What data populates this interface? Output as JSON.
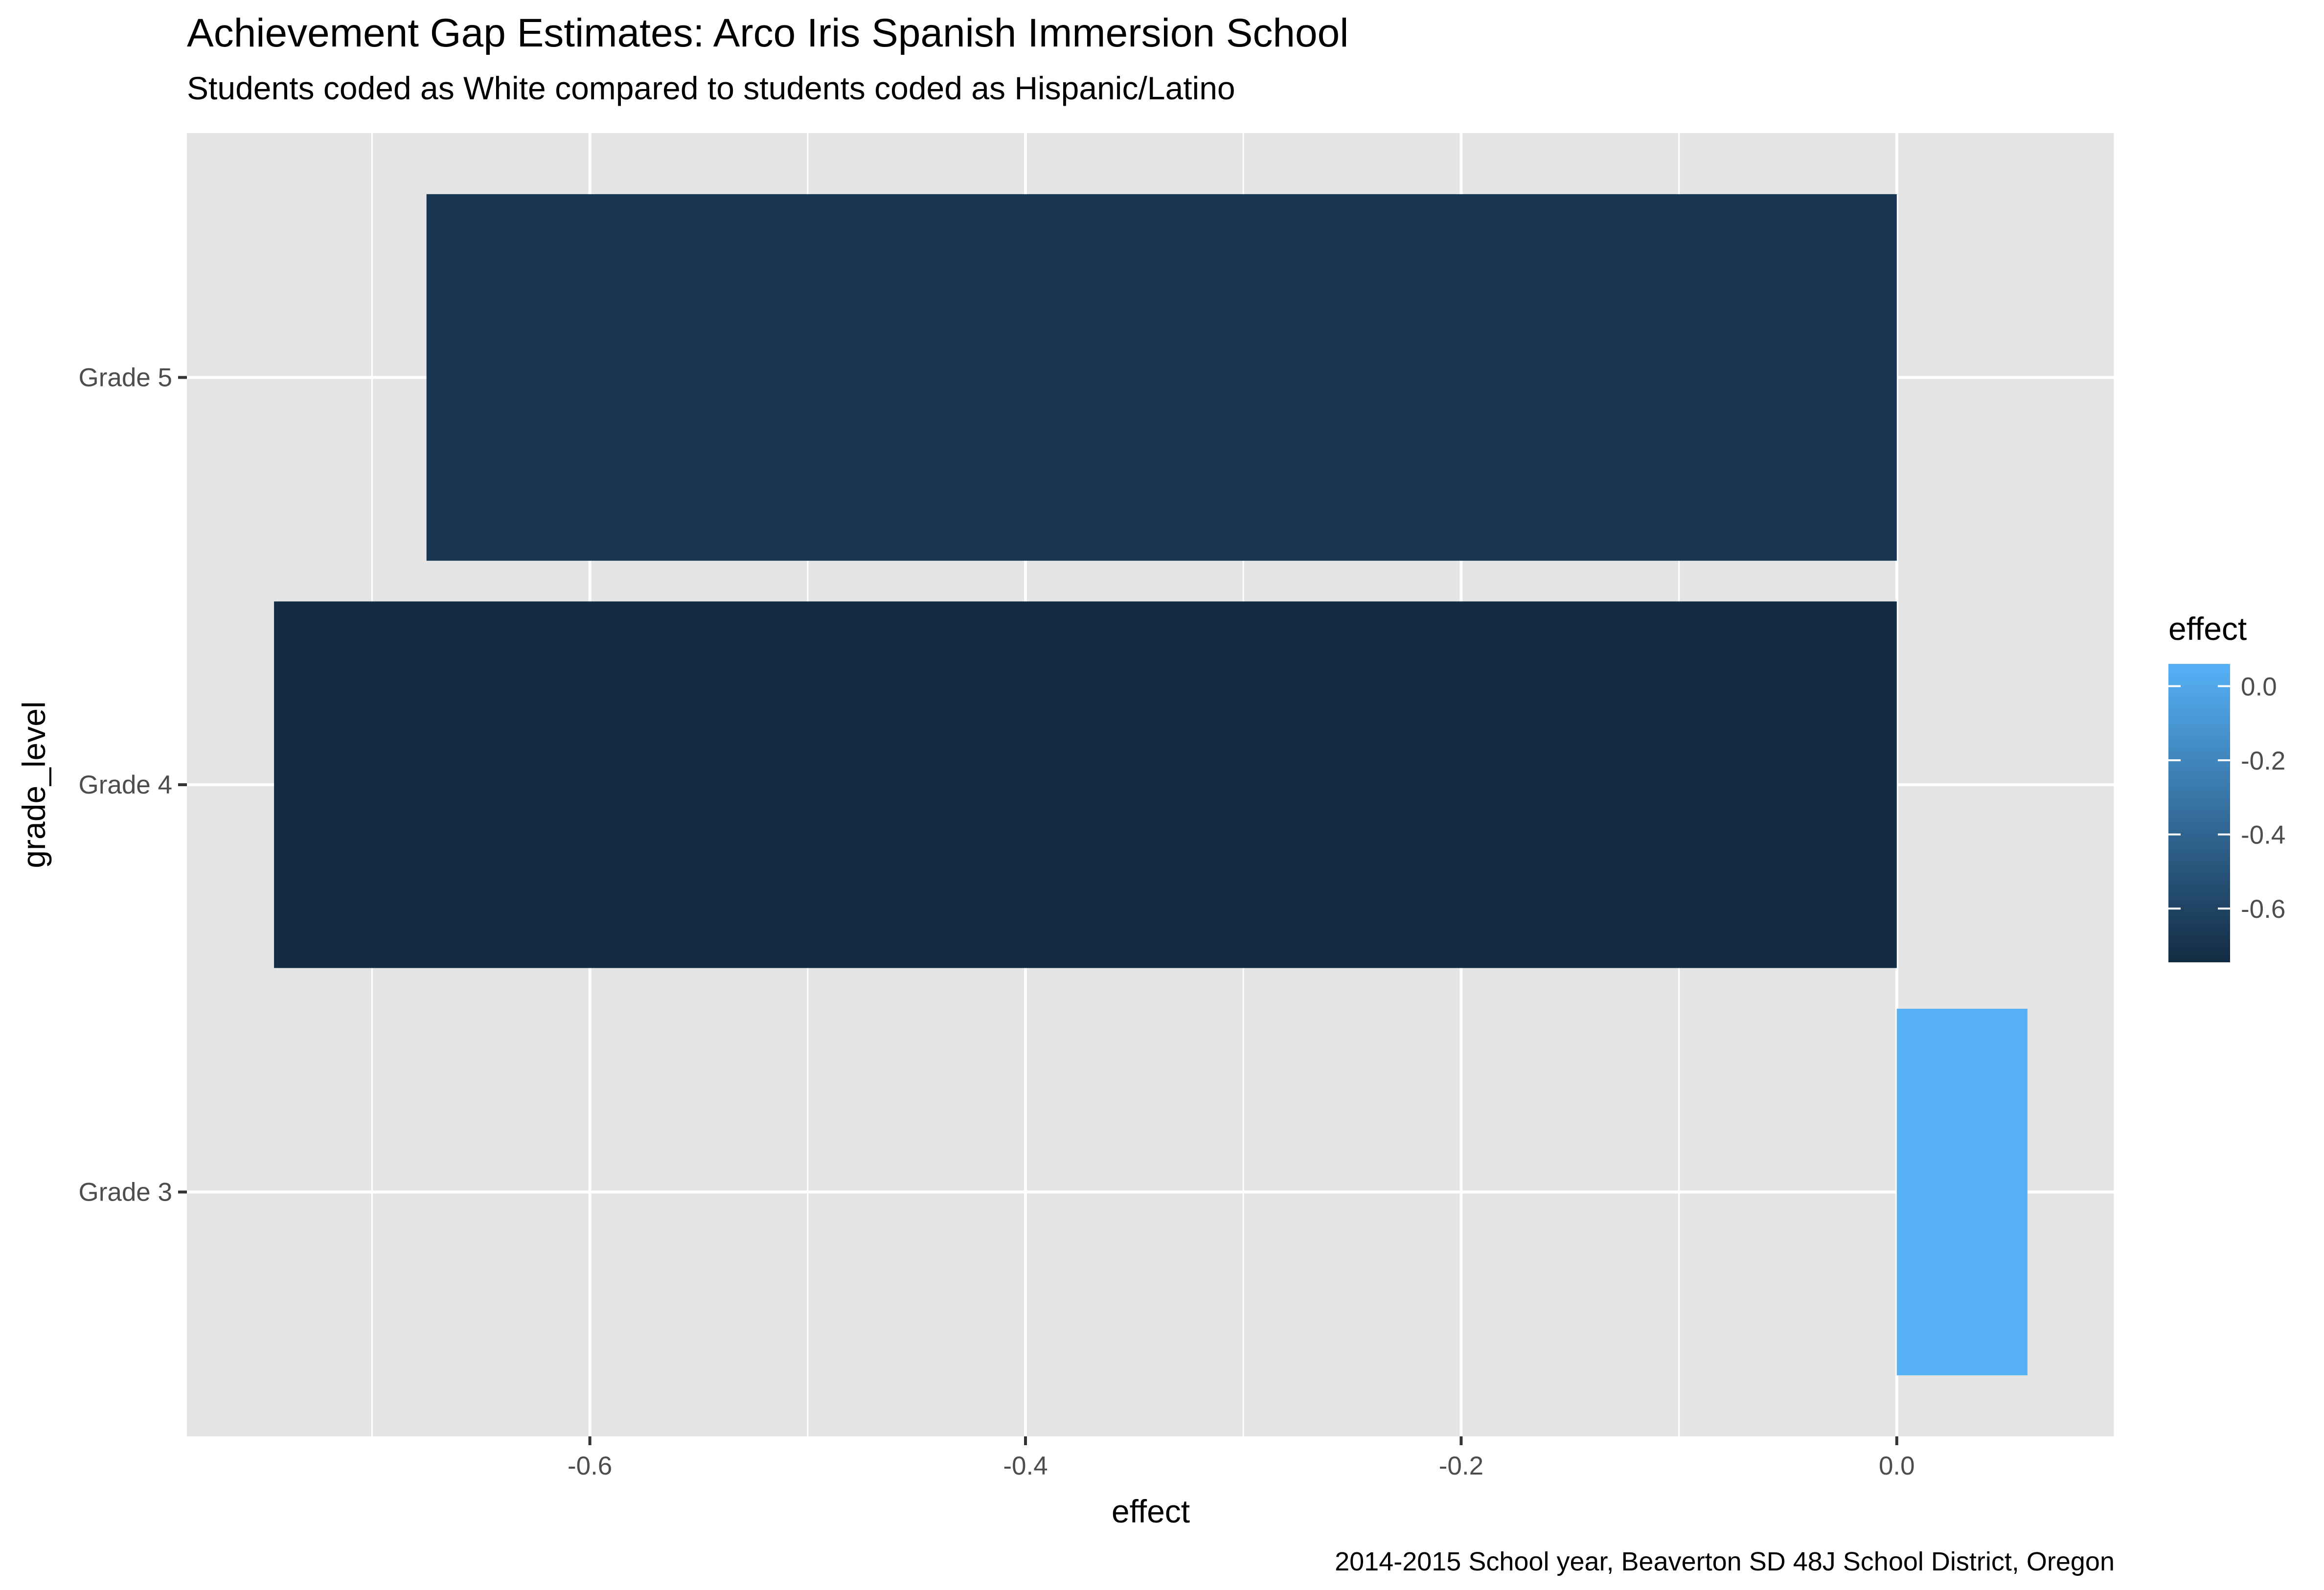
{
  "chart_data": {
    "type": "bar",
    "orientation": "horizontal",
    "title": "Achievement Gap Estimates: Arco Iris Spanish Immersion School",
    "subtitle": "Students coded as White compared to students coded as Hispanic/Latino",
    "caption": "2014-2015 School year, Beaverton SD 48J School District, Oregon",
    "xlabel": "effect",
    "ylabel": "grade_level",
    "categories": [
      "Grade 3",
      "Grade 4",
      "Grade 5"
    ],
    "values": [
      0.06,
      -0.745,
      -0.675
    ],
    "xlim": [
      -0.785,
      0.1
    ],
    "x_ticks": [
      -0.6,
      -0.4,
      -0.2,
      0.0
    ],
    "x_tick_labels": [
      "-0.6",
      "-0.4",
      "-0.2",
      "0.0"
    ],
    "grid": true,
    "legend": {
      "title": "effect",
      "placement": "right",
      "min": -0.745,
      "max": 0.06,
      "ticks": [
        0.0,
        -0.2,
        -0.4,
        -0.6
      ],
      "tick_labels": [
        "0.0",
        "-0.2",
        "-0.4",
        "-0.6"
      ],
      "color_low": "#132B43",
      "color_high": "#56B1F7"
    },
    "colors": {
      "panel": "#E5E5E5",
      "grid": "#FFFFFF",
      "text": "#000000",
      "tick_text": "#4D4D4D",
      "tick_mark": "#333333"
    }
  }
}
